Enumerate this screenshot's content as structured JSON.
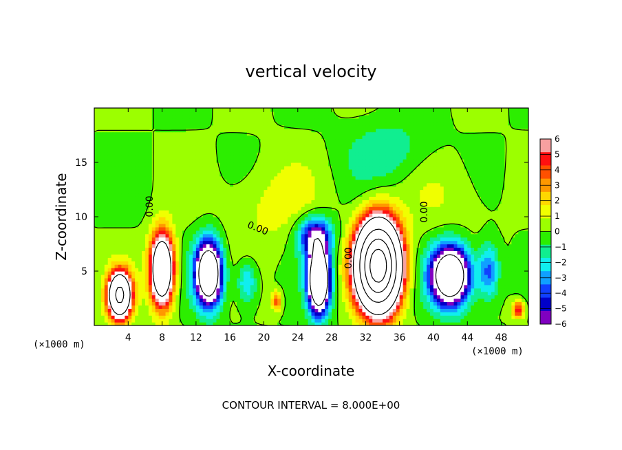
{
  "chart_data": {
    "type": "heatmap",
    "title": "vertical velocity",
    "xlabel": "X-coordinate",
    "ylabel": "Z-coordinate",
    "x_unit_label": "(×1000 m)",
    "y_unit_label": "(×1000 m)",
    "x_ticks": [
      4,
      8,
      12,
      16,
      20,
      24,
      28,
      32,
      36,
      40,
      44,
      48
    ],
    "y_ticks": [
      5,
      10,
      15
    ],
    "xlim": [
      0,
      51.2
    ],
    "ylim": [
      0,
      20
    ],
    "colorbar": {
      "ticks": [
        6,
        5,
        4,
        3,
        2,
        1,
        0,
        -1,
        -2,
        -3,
        -4,
        -5,
        -6
      ],
      "labels": [
        "6",
        "5",
        "4",
        "3",
        "2",
        "1",
        "0",
        "−1",
        "−2",
        "−3",
        "−4",
        "−5",
        "−6"
      ],
      "range": [
        -6,
        6
      ],
      "colors": [
        "#f7a0a0",
        "#ff1010",
        "#ff5000",
        "#ff9800",
        "#ffd800",
        "#f0ff00",
        "#9cff00",
        "#2cee00",
        "#10ee90",
        "#10eeee",
        "#10a0ff",
        "#1040ff",
        "#0000c8",
        "#8000c0"
      ]
    },
    "contour_labels": [
      "0.00",
      "0.00",
      "0.00",
      "0.00"
    ],
    "footer": "CONTOUR INTERVAL = 8.000E+00",
    "features": [
      {
        "kind": "updraft",
        "x": 3,
        "z": 2.8,
        "sx": 1.3,
        "sz": 2.0,
        "amp": 18
      },
      {
        "kind": "updraft",
        "x": 8,
        "z": 5.2,
        "sx": 1.3,
        "sz": 3.1,
        "amp": 16
      },
      {
        "kind": "downdraft",
        "x": 13.5,
        "z": 4.8,
        "sx": 1.5,
        "sz": 2.8,
        "amp": -14
      },
      {
        "kind": "updraft",
        "x": 21.5,
        "z": 2.3,
        "sx": 0.6,
        "sz": 0.9,
        "amp": 4
      },
      {
        "kind": "downdraft",
        "x": 26.5,
        "z": 4.2,
        "sx": 1.2,
        "sz": 2.8,
        "amp": -16
      },
      {
        "kind": "downdraft",
        "x": 26,
        "z": 8.2,
        "sx": 2.0,
        "sz": 1.8,
        "amp": -6
      },
      {
        "kind": "updraft",
        "x": 33.5,
        "z": 5.5,
        "sx": 2.3,
        "sz": 3.6,
        "amp": 38
      },
      {
        "kind": "downdraft",
        "x": 42,
        "z": 4.6,
        "sx": 2.2,
        "sz": 2.6,
        "amp": -14
      },
      {
        "kind": "downdraft",
        "x": 46.5,
        "z": 5.0,
        "sx": 1.2,
        "sz": 2.5,
        "amp": -4
      },
      {
        "kind": "updraft",
        "x": 50,
        "z": 1.5,
        "sx": 0.7,
        "sz": 0.8,
        "amp": 5
      },
      {
        "kind": "downdraft",
        "x": 18,
        "z": 4.0,
        "sx": 1.2,
        "sz": 2.0,
        "amp": -3
      },
      {
        "kind": "updraft",
        "x": 21,
        "z": 11,
        "sx": 6,
        "sz": 4,
        "amp": 1.2
      },
      {
        "kind": "downdraft",
        "x": 35,
        "z": 16,
        "sx": 5,
        "sz": 3,
        "amp": -1.5
      },
      {
        "kind": "updraft",
        "x": 42,
        "z": 12,
        "sx": 5,
        "sz": 4,
        "amp": 0.8
      }
    ]
  }
}
